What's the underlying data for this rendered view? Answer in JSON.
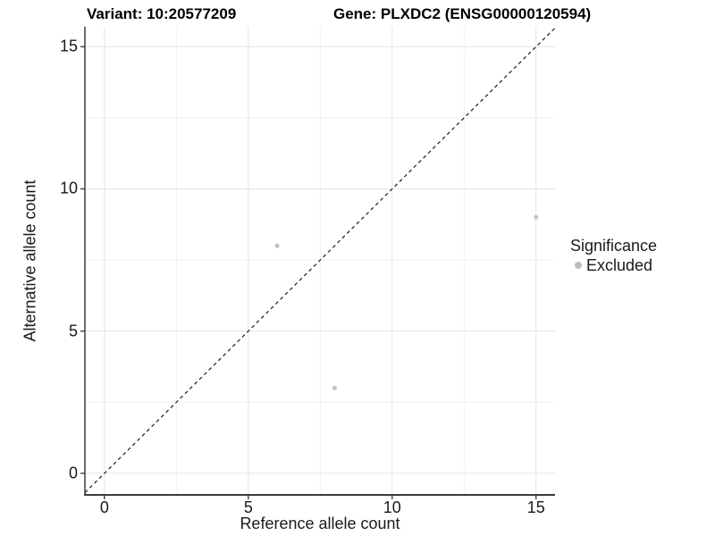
{
  "chart_data": {
    "type": "scatter",
    "title_left": "Variant: 10:20577209",
    "title_right": "Gene: PLXDC2 (ENSG00000120594)",
    "xlabel": "Reference allele count",
    "ylabel": "Alternative allele count",
    "xlim": [
      -0.68,
      15.66
    ],
    "ylim": [
      -0.76,
      15.7
    ],
    "x_ticks": [
      0,
      5,
      10,
      15
    ],
    "y_ticks": [
      0,
      5,
      10,
      15
    ],
    "x_minor_ticks": [
      2.5,
      7.5,
      12.5
    ],
    "y_minor_ticks": [
      2.5,
      7.5,
      12.5
    ],
    "grid": true,
    "identity_line": {
      "style": "dashed",
      "slope": 1,
      "intercept": 0,
      "color": "#1a1a1a"
    },
    "series": [
      {
        "name": "Excluded",
        "color": "#c2c2c2",
        "point_radius": 2.5,
        "points": [
          {
            "x": 6,
            "y": 8
          },
          {
            "x": 8,
            "y": 3
          },
          {
            "x": 15,
            "y": 9
          }
        ]
      }
    ],
    "legend": {
      "title": "Significance",
      "position": "right",
      "items": [
        {
          "label": "Excluded",
          "color": "#bdbdbd"
        }
      ]
    }
  },
  "colors": {
    "grid_major": "#e4e4e4",
    "grid_minor": "#f2f2f2",
    "axis_line": "#3c3c3c",
    "tick_mark": "#333333",
    "text": "#1a1a1a"
  }
}
